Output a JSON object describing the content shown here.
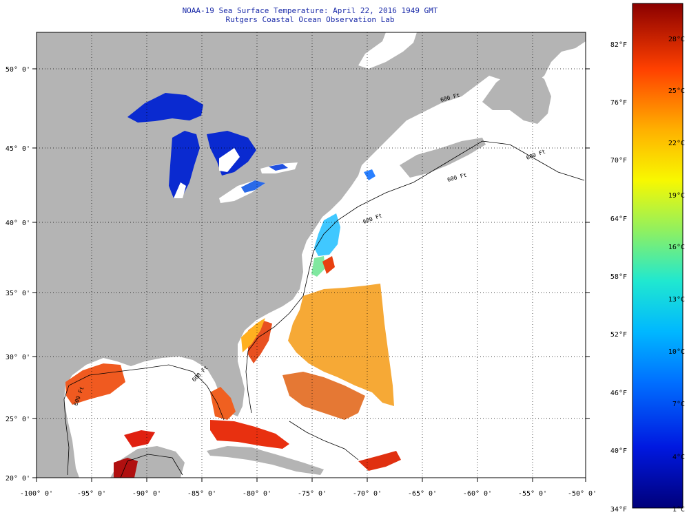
{
  "title": "NOAA-19 Sea Surface Temperature:  April 22, 2016 1949 GMT",
  "subtitle": "Rutgers Coastal Ocean Observation Lab",
  "colors": {
    "land": "#b4b4b4",
    "lakes_cold": "#0a2ad0",
    "ocean_nodata": "#ffffff",
    "warm": "#f5a020",
    "hot": "#d81010",
    "cool": "#40c8ff"
  },
  "map": {
    "lon_range": [
      -100,
      -50
    ],
    "lat_range": [
      20,
      52
    ],
    "grid": "dotted",
    "lon_labels": [
      "-100° 0'",
      "-95° 0'",
      "-90° 0'",
      "-85° 0'",
      "-80° 0'",
      "-75° 0'",
      "-70° 0'",
      "-65° 0'",
      "-60° 0'",
      "-55° 0'",
      "-50° 0'"
    ],
    "lat_labels": [
      "20° 0'",
      "25° 0'",
      "30° 0'",
      "35° 0'",
      "40° 0'",
      "45° 0'",
      "50° 0'"
    ],
    "isobath_labels": [
      "600 Ft",
      "600 Ft",
      "600 Ft",
      "600 Ft",
      "600 Ft",
      "600 Ft"
    ]
  },
  "colorbar": {
    "fahrenheit_labels": [
      "34°F",
      "40°F",
      "46°F",
      "52°F",
      "58°F",
      "64°F",
      "70°F",
      "76°F",
      "82°F"
    ],
    "celsius_labels": [
      "1°C",
      "4°C",
      "7°C",
      "10°C",
      "13°C",
      "16°C",
      "19°C",
      "22°C",
      "25°C",
      "28°C"
    ]
  }
}
